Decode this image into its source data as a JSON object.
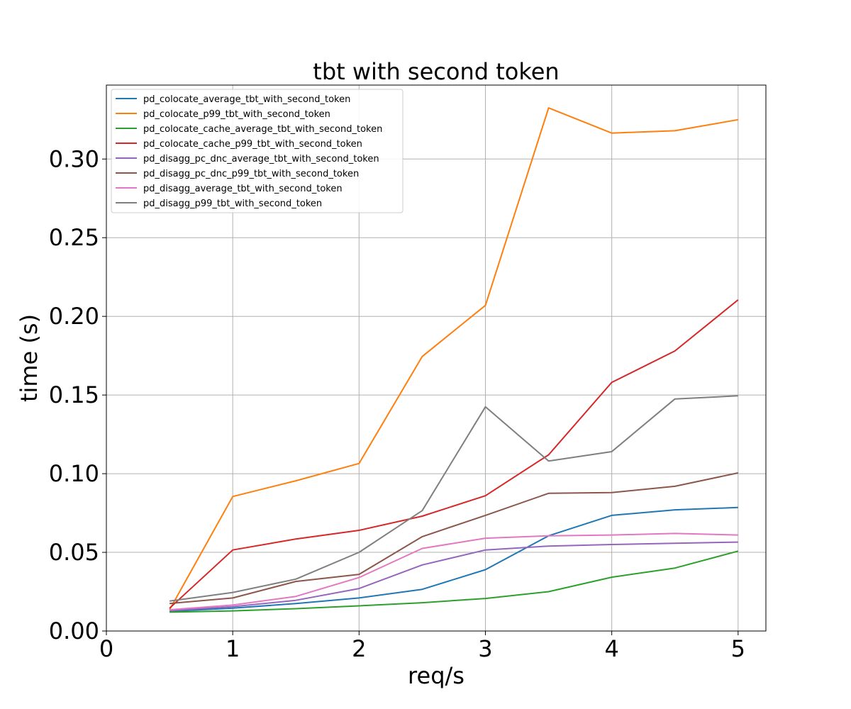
{
  "chart_data": {
    "type": "line",
    "title": "tbt with second token",
    "xlabel": "req/s",
    "ylabel": "time (s)",
    "xlim": [
      0,
      5.22
    ],
    "ylim": [
      0,
      0.347
    ],
    "xticks": [
      0,
      1,
      2,
      3,
      4,
      5
    ],
    "xtick_labels": [
      "0",
      "1",
      "2",
      "3",
      "4",
      "5"
    ],
    "yticks": [
      0.0,
      0.05,
      0.1,
      0.15,
      0.2,
      0.25,
      0.3
    ],
    "ytick_labels": [
      "0.00",
      "0.05",
      "0.10",
      "0.15",
      "0.20",
      "0.25",
      "0.30"
    ],
    "grid": true,
    "legend_position": "top-left",
    "x": [
      0.5,
      1.0,
      1.5,
      2.0,
      2.5,
      3.0,
      3.5,
      4.0,
      4.5,
      5.0
    ],
    "series": [
      {
        "name": "pd_colocate_average_tbt_with_second_token",
        "color": "#1f77b4",
        "values": [
          0.0125,
          0.0145,
          0.0175,
          0.021,
          0.0265,
          0.039,
          0.0605,
          0.0735,
          0.077,
          0.0785
        ]
      },
      {
        "name": "pd_colocate_p99_tbt_with_second_token",
        "color": "#ff7f0e",
        "values": [
          0.0135,
          0.0855,
          0.0955,
          0.1065,
          0.1745,
          0.207,
          0.3325,
          0.3165,
          0.318,
          0.325
        ]
      },
      {
        "name": "pd_colocate_cache_average_tbt_with_second_token",
        "color": "#2ca02c",
        "values": [
          0.012,
          0.0128,
          0.0142,
          0.016,
          0.018,
          0.0207,
          0.025,
          0.0342,
          0.04,
          0.0508
        ]
      },
      {
        "name": "pd_colocate_cache_p99_tbt_with_second_token",
        "color": "#d62728",
        "values": [
          0.0145,
          0.0515,
          0.0585,
          0.064,
          0.073,
          0.086,
          0.112,
          0.158,
          0.178,
          0.2105
        ]
      },
      {
        "name": "pd_disagg_pc_dnc_average_tbt_with_second_token",
        "color": "#9467bd",
        "values": [
          0.013,
          0.0155,
          0.0195,
          0.027,
          0.042,
          0.0515,
          0.054,
          0.055,
          0.0558,
          0.0565
        ]
      },
      {
        "name": "pd_disagg_pc_dnc_p99_tbt_with_second_token",
        "color": "#8c564b",
        "values": [
          0.0175,
          0.021,
          0.0315,
          0.036,
          0.06,
          0.0735,
          0.0875,
          0.088,
          0.092,
          0.1005
        ]
      },
      {
        "name": "pd_disagg_average_tbt_with_second_token",
        "color": "#e377c2",
        "values": [
          0.0135,
          0.0165,
          0.022,
          0.034,
          0.0525,
          0.059,
          0.0605,
          0.061,
          0.062,
          0.061
        ]
      },
      {
        "name": "pd_disagg_p99_tbt_with_second_token",
        "color": "#7f7f7f",
        "values": [
          0.019,
          0.0245,
          0.033,
          0.05,
          0.0765,
          0.1425,
          0.108,
          0.114,
          0.1475,
          0.1495
        ]
      }
    ]
  }
}
